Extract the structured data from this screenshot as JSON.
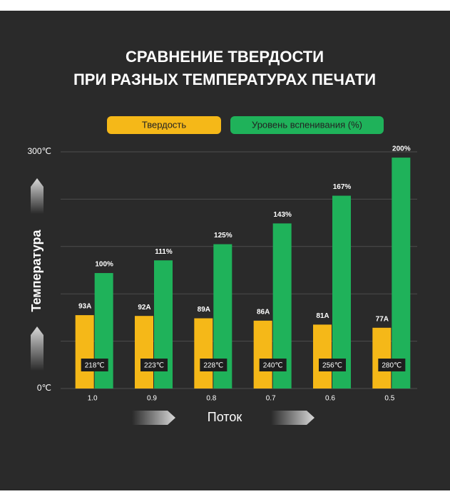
{
  "chart_data": {
    "type": "bar",
    "title": [
      "СРАВНЕНИЕ ТВЕРДОСТИ",
      "ПРИ РАЗНЫХ ТЕМПЕРАТУРАХ ПЕЧАТИ"
    ],
    "x_label": "Поток",
    "y_label": "Температура",
    "categories": [
      "1.0",
      "0.9",
      "0.8",
      "0.7",
      "0.6",
      "0.5"
    ],
    "temperatures": [
      "218℃",
      "223℃",
      "228℃",
      "240℃",
      "256℃",
      "280℃"
    ],
    "ylim": [
      0,
      300
    ],
    "yticks": [
      {
        "value": 0,
        "label": "0℃"
      },
      {
        "value": 60,
        "label": null
      },
      {
        "value": 120,
        "label": null
      },
      {
        "value": 180,
        "label": null
      },
      {
        "value": 240,
        "label": null
      },
      {
        "value": 300,
        "label": "300℃"
      }
    ],
    "y2lim": [
      0,
      205
    ],
    "grid": true,
    "series": [
      {
        "name": "Твердость",
        "color": "#f5b818",
        "values": [
          93,
          92,
          89,
          86,
          81,
          77
        ],
        "value_labels": [
          "93A",
          "92A",
          "89A",
          "86A",
          "81A",
          "77A"
        ]
      },
      {
        "name": "Уровень вспенивания (%)",
        "color": "#1fb25a",
        "axis": "y2",
        "values": [
          100,
          111,
          125,
          143,
          167,
          200
        ],
        "value_labels": [
          "100%",
          "111%",
          "125%",
          "143%",
          "167%",
          "200%"
        ]
      }
    ]
  }
}
